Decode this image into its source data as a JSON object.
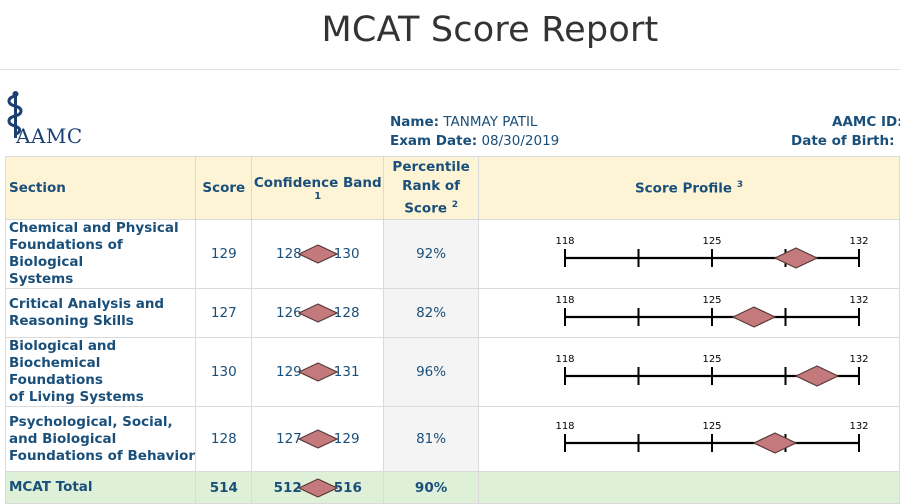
{
  "title": "MCAT Score Report",
  "logo_text": "AAMC",
  "candidate": {
    "name_label": "Name:",
    "name": "TANMAY PATIL",
    "exam_date_label": "Exam Date:",
    "exam_date": "08/30/2019",
    "aamc_id_label": "AAMC ID:",
    "dob_label": "Date of Birth:"
  },
  "headers": {
    "section": "Section",
    "score": "Score",
    "confidence_band": "Confidence Band",
    "confidence_band_note": "1",
    "percentile_l1": "Percentile",
    "percentile_l2": "Rank of",
    "percentile_l3": "Score",
    "percentile_note": "2",
    "score_profile": "Score Profile",
    "score_profile_note": "3"
  },
  "profile_axis": {
    "min": 118,
    "mid": 125,
    "max": 132,
    "min_label": "118",
    "mid_label": "125",
    "max_label": "132"
  },
  "rows": [
    {
      "section_l1": "Chemical and Physical",
      "section_l2": "Foundations of Biological",
      "section_l3": "Systems",
      "score": "129",
      "score_value": 129,
      "band_low": "128",
      "band_high": "130",
      "band_low_value": 128,
      "band_high_value": 130,
      "percentile": "92%"
    },
    {
      "section_l1": "Critical Analysis and",
      "section_l2": "Reasoning Skills",
      "section_l3": "",
      "score": "127",
      "score_value": 127,
      "band_low": "126",
      "band_high": "128",
      "band_low_value": 126,
      "band_high_value": 128,
      "percentile": "82%"
    },
    {
      "section_l1": "Biological and",
      "section_l2": "Biochemical Foundations",
      "section_l3": "of Living Systems",
      "score": "130",
      "score_value": 130,
      "band_low": "129",
      "band_high": "131",
      "band_low_value": 129,
      "band_high_value": 131,
      "percentile": "96%"
    },
    {
      "section_l1": "Psychological, Social,",
      "section_l2": "and Biological",
      "section_l3": "Foundations of Behavior",
      "score": "128",
      "score_value": 128,
      "band_low": "127",
      "band_high": "129",
      "band_low_value": 127,
      "band_high_value": 129,
      "percentile": "81%"
    }
  ],
  "total": {
    "section": "MCAT Total",
    "score": "514",
    "band_low": "512",
    "band_high": "516",
    "percentile": "90%"
  },
  "colors": {
    "diamond_fill": "#c47a7c",
    "diamond_stroke": "#5a3a3a",
    "header_bg": "#fdf4d6",
    "total_bg": "#dff0d8",
    "text": "#1a4f7a"
  }
}
